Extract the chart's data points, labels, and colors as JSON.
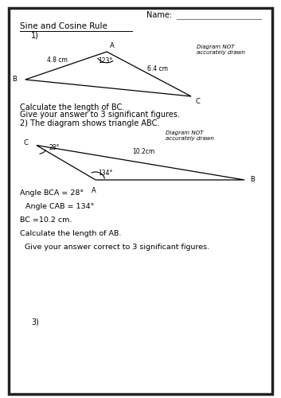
{
  "title": "Sine and Cosine Rule",
  "name_label": "Name:",
  "q1_label": "1)",
  "q2_label": "2) The diagram shows triangle ABC.",
  "q3_label": "3)",
  "diagram_not": "Diagram NOT",
  "accurately_drawn": "accurately drawn",
  "q1_text1": "Calculate the length of BC.",
  "q1_text2": "Give your answer to 3 significant figures.",
  "q1_side_AB": "4.8 cm",
  "q1_side_AC": "6.4 cm",
  "q1_angle": "123°",
  "q2_side_CB": "10.2cm",
  "q2_angle_C": "28°",
  "q2_angle_A": "134°",
  "q2_info": [
    "Angle BCA = 28°",
    "Angle CAB = 134°",
    "BC =10.2 cm.",
    "Calculate the length of AB.",
    " Give your answer correct to 3 significant figures."
  ],
  "background_color": "#ffffff",
  "border_color": "#222222",
  "text_color": "#000000"
}
